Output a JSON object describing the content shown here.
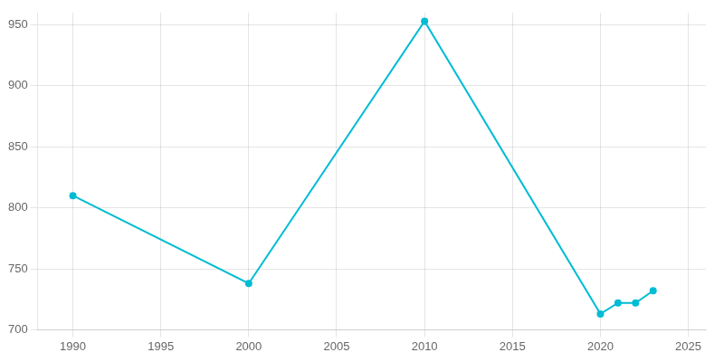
{
  "chart_data": {
    "type": "line",
    "x": [
      1990,
      2000,
      2010,
      2020,
      2021,
      2022,
      2023
    ],
    "values": [
      810,
      738,
      953,
      713,
      722,
      722,
      732
    ],
    "color": "#00BCD4",
    "marker": "circle",
    "xlim": [
      1988,
      2026
    ],
    "xticks": [
      1990,
      1995,
      2000,
      2005,
      2010,
      2015,
      2020,
      2025
    ],
    "ylim": [
      700,
      960
    ],
    "yticks": [
      700,
      750,
      800,
      850,
      900,
      950
    ],
    "grid": true
  }
}
